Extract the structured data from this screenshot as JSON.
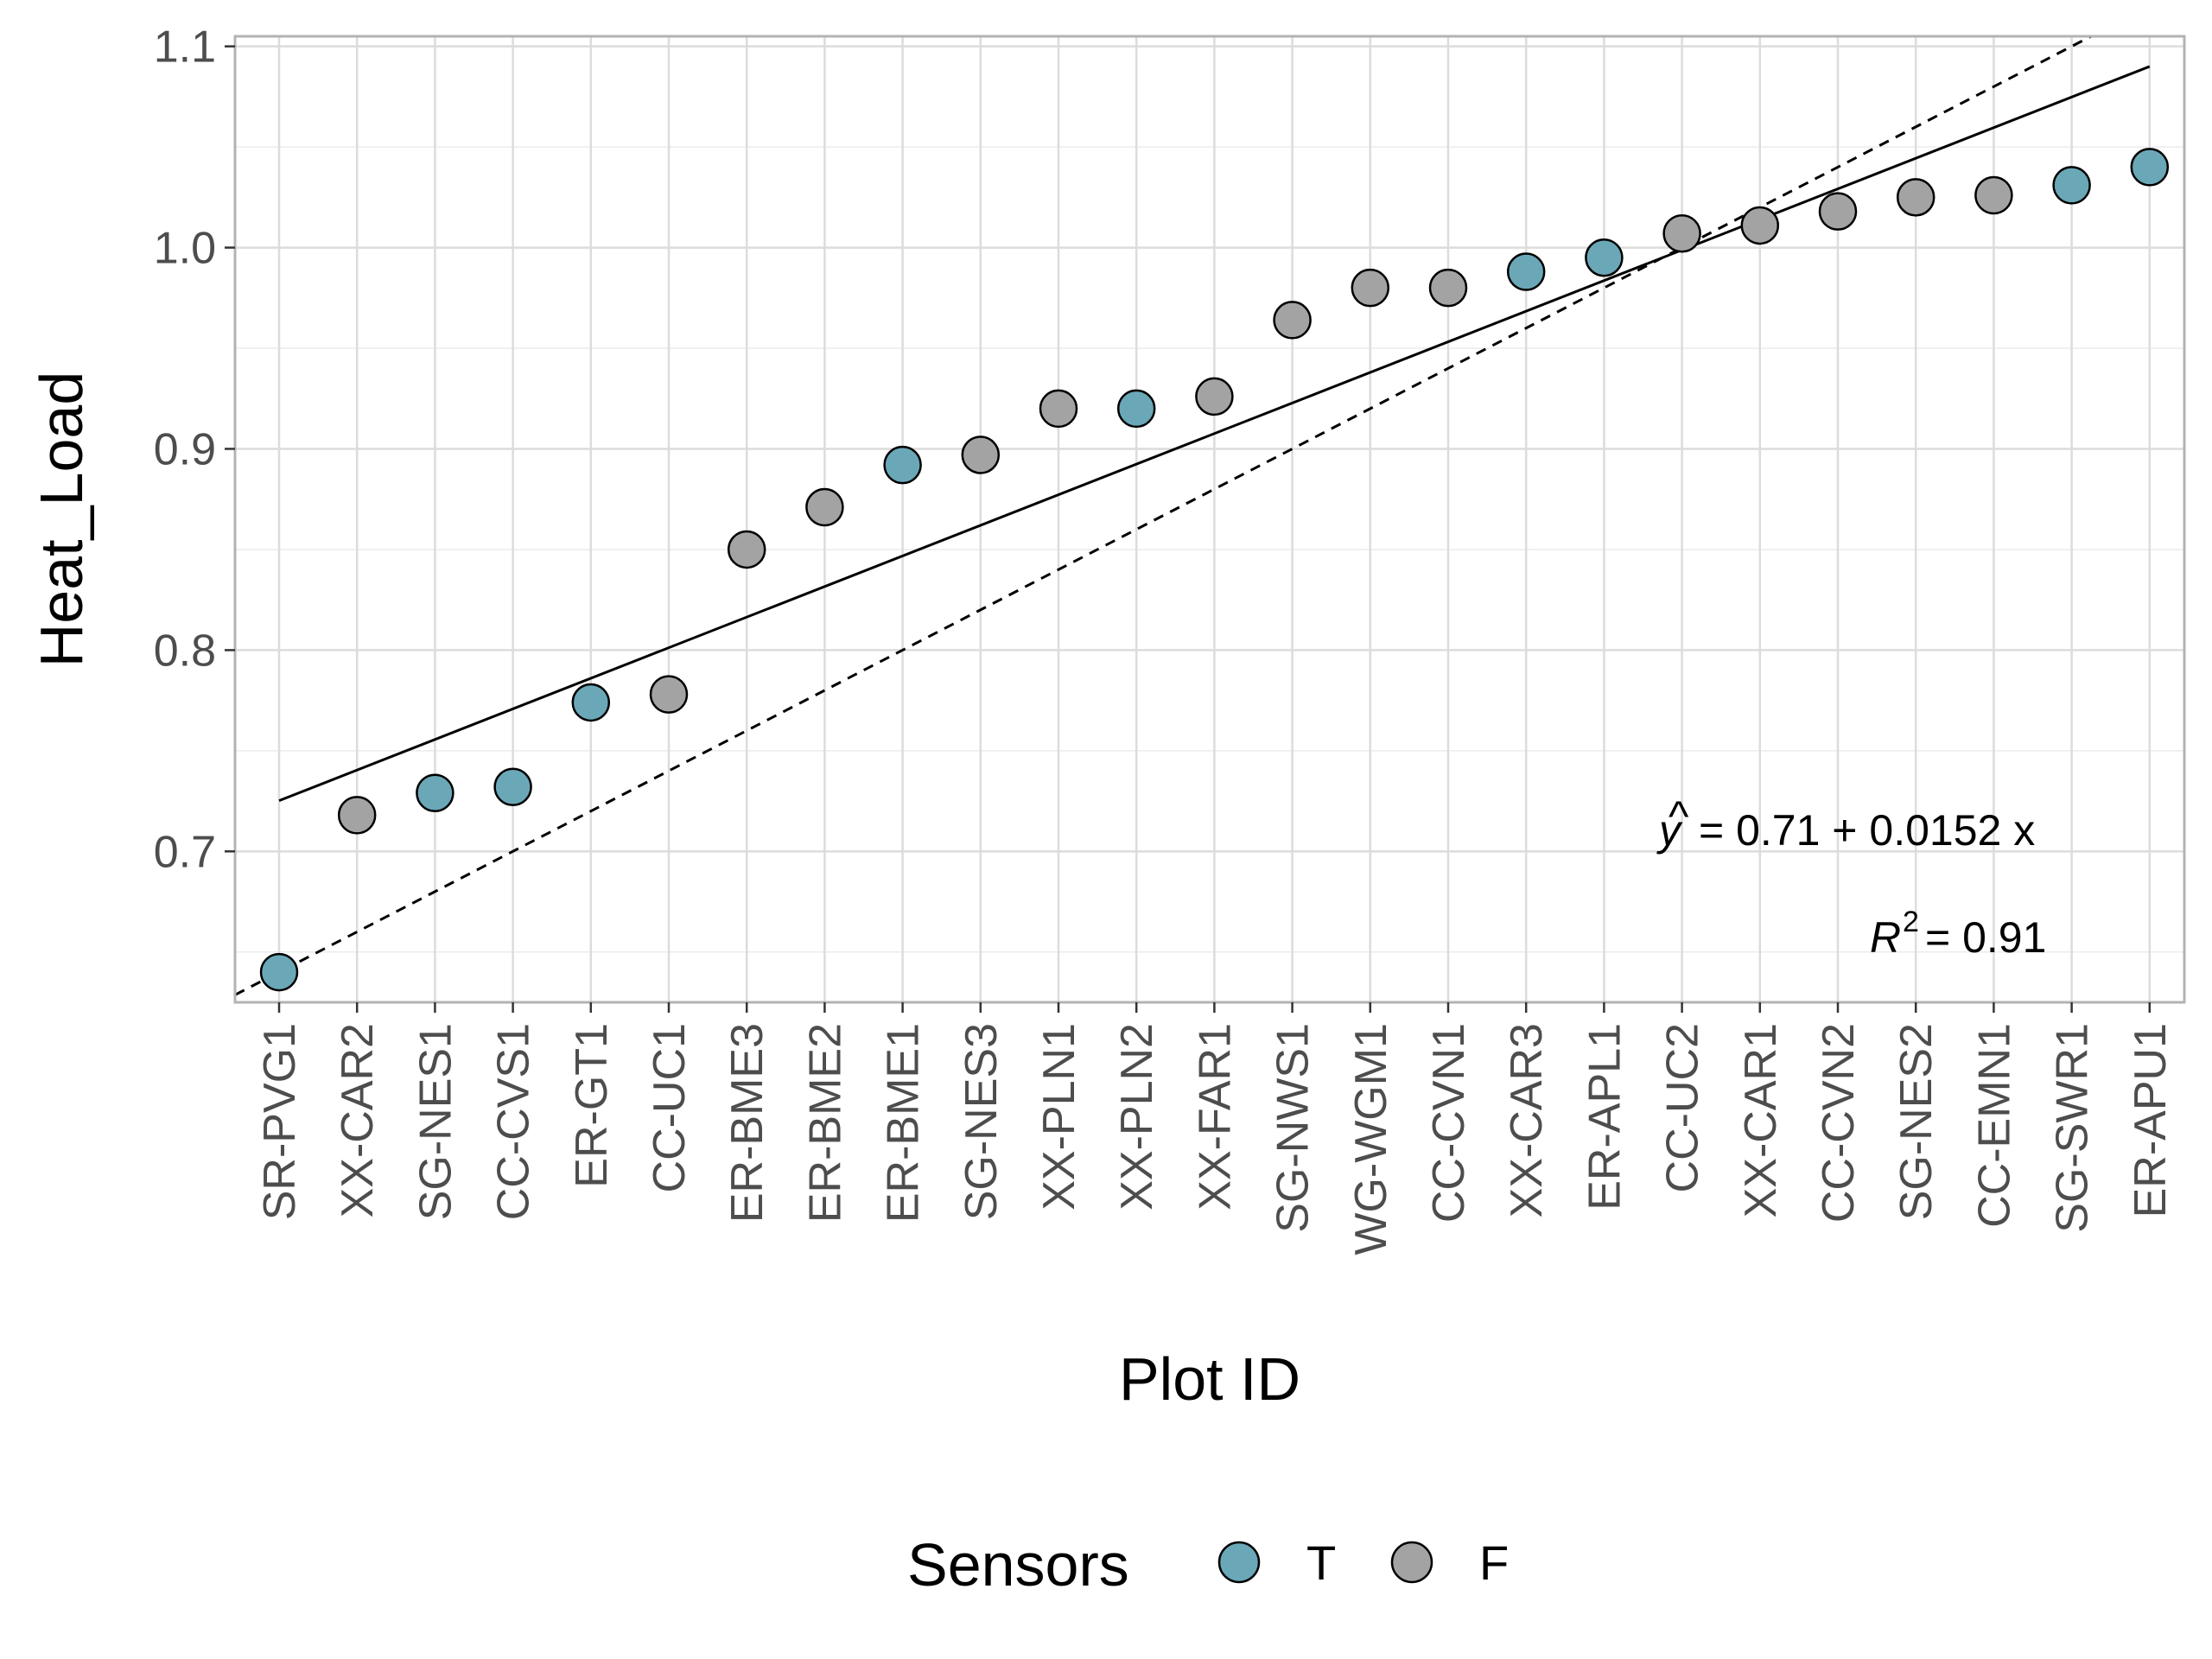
{
  "chart_data": {
    "type": "scatter",
    "xlabel": "Plot ID",
    "ylabel": "Heat_Load",
    "ylim": [
      0.625,
      1.105
    ],
    "yticks": [
      0.7,
      0.8,
      0.9,
      1.0,
      1.1
    ],
    "ytick_labels": [
      "0.7",
      "0.8",
      "0.9",
      "1.0",
      "1.1"
    ],
    "grid": true,
    "categories": [
      "SR-PVG1",
      "XX-CAR2",
      "SG-NES1",
      "CC-CVS1",
      "ER-GT1",
      "CC-UC1",
      "ER-BME3",
      "ER-BME2",
      "ER-BME1",
      "SG-NES3",
      "XX-PLN1",
      "XX-PLN2",
      "XX-FAR1",
      "SG-NWS1",
      "WG-WGM1",
      "CC-CVN1",
      "XX-CAR3",
      "ER-APL1",
      "CC-UC2",
      "XX-CAR1",
      "CC-CVN2",
      "SG-NES2",
      "CC-EMN1",
      "SG-SWR1",
      "ER-APU1"
    ],
    "values": [
      0.64,
      0.718,
      0.729,
      0.732,
      0.774,
      0.778,
      0.85,
      0.871,
      0.892,
      0.897,
      0.92,
      0.92,
      0.926,
      0.964,
      0.98,
      0.98,
      0.988,
      0.995,
      1.007,
      1.011,
      1.018,
      1.025,
      1.026,
      1.031,
      1.04
    ],
    "sensors": [
      "T",
      "F",
      "T",
      "T",
      "T",
      "F",
      "F",
      "F",
      "T",
      "F",
      "F",
      "T",
      "F",
      "F",
      "F",
      "F",
      "T",
      "T",
      "F",
      "F",
      "F",
      "F",
      "F",
      "T",
      "T"
    ],
    "legend": {
      "title": "Sensors",
      "position": "bottom",
      "entries": [
        {
          "label": "T",
          "color": "#6aa8b8"
        },
        {
          "label": "F",
          "color": "#a3a3a3"
        }
      ]
    },
    "fit_line": {
      "intercept": 0.71,
      "slope": 0.0152,
      "style": "solid"
    },
    "identity_line": {
      "intercept": 0.62,
      "slope": 0.02,
      "style": "dashed"
    },
    "annotations": {
      "equation": {
        "lhs": "y",
        "rhs": "= 0.71 + 0.0152 x"
      },
      "r_squared": {
        "symbol": "R",
        "exponent": "2",
        "rhs": "= 0.91"
      }
    }
  }
}
